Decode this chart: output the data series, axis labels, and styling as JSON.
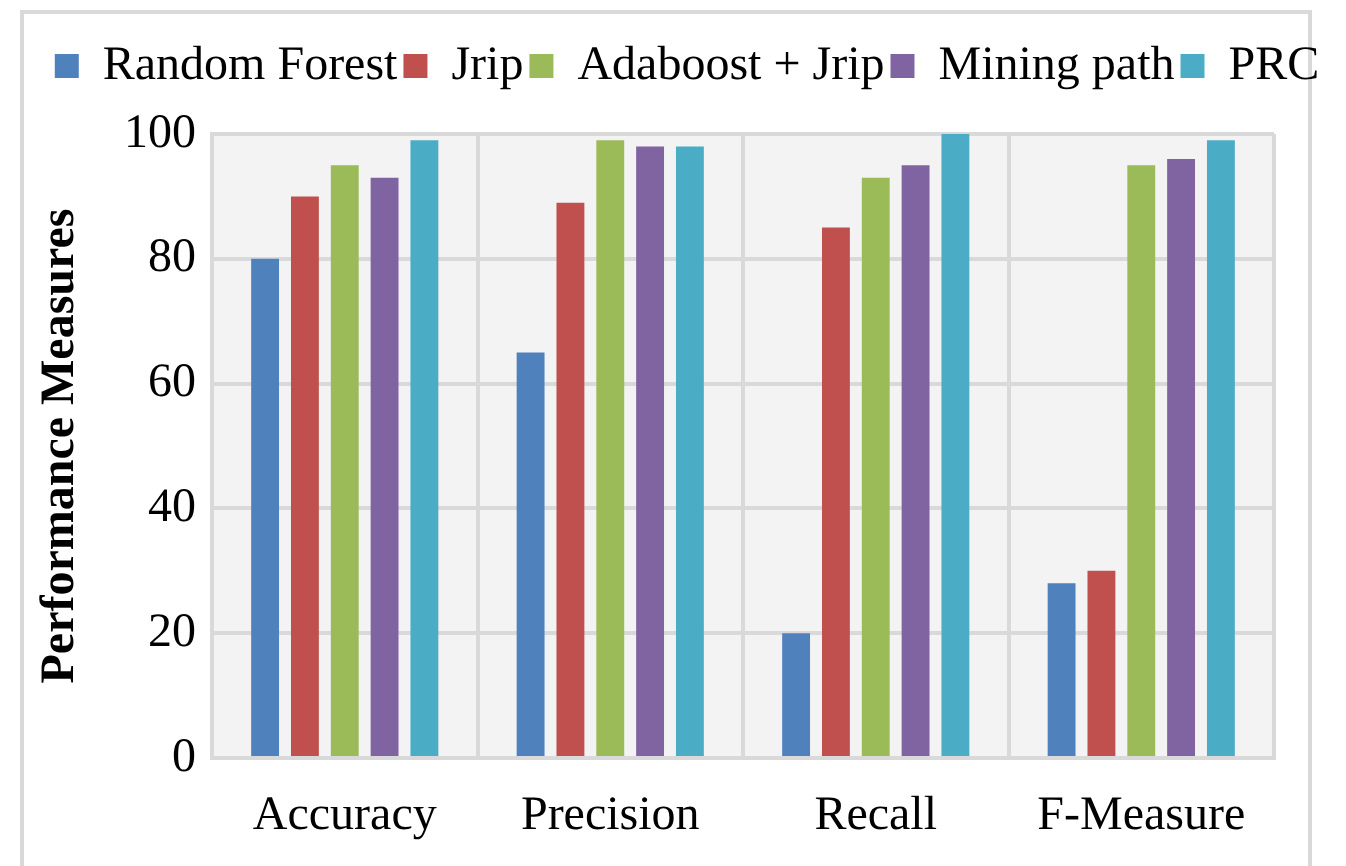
{
  "chart_data": {
    "type": "bar",
    "categories": [
      "Accuracy",
      "Precision",
      "Recall",
      "F-Measure"
    ],
    "series": [
      {
        "name": "Random Forest",
        "color": "#4f81bd",
        "values": [
          80,
          65,
          20,
          28
        ]
      },
      {
        "name": "Jrip",
        "color": "#c0504d",
        "values": [
          90,
          89,
          85,
          30
        ]
      },
      {
        "name": "Adaboost + Jrip",
        "color": "#9bbb59",
        "values": [
          95,
          99,
          93,
          95
        ]
      },
      {
        "name": "Mining path",
        "color": "#8064a2",
        "values": [
          93,
          98,
          95,
          96
        ]
      },
      {
        "name": "PRC",
        "color": "#4bacc6",
        "values": [
          99,
          98,
          100,
          99
        ]
      }
    ],
    "ylabel": "Performance Measures",
    "ylim": [
      0,
      100
    ],
    "yticks": [
      0,
      20,
      40,
      60,
      80,
      100
    ],
    "grid": true,
    "legend": "top"
  }
}
